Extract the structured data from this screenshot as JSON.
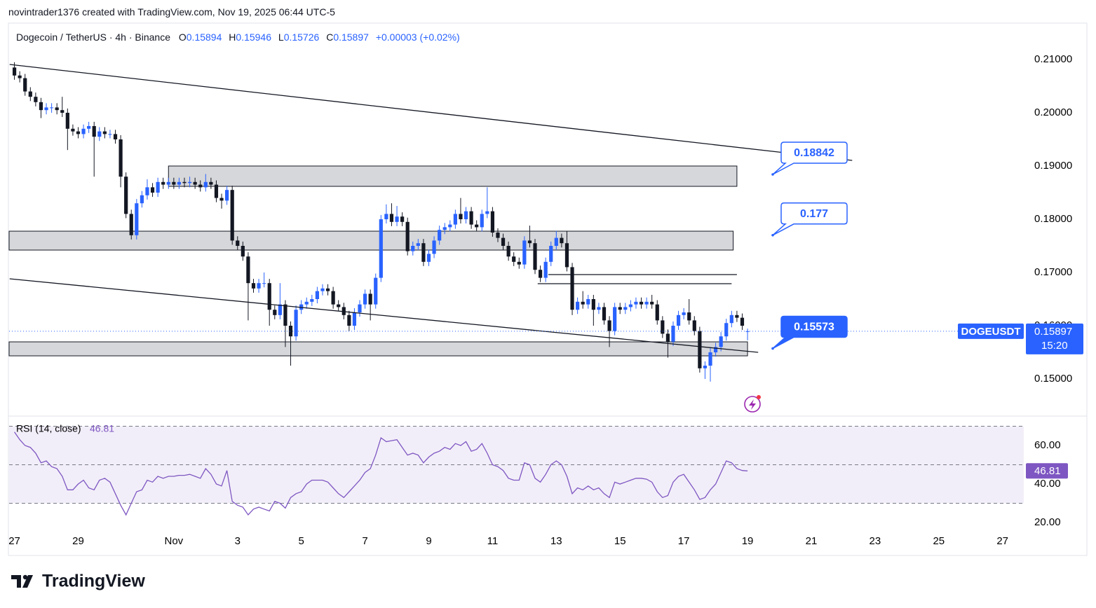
{
  "credit": "novintrader1376 created with TradingView.com, Nov 19, 2025 06:44 UTC-5",
  "brand": "TradingView",
  "chart_data": [
    {
      "type": "candlestick",
      "symbol": "Dogecoin / TetherUS · 4h · Binance",
      "ohlc_labels": [
        "O",
        "H",
        "L",
        "C"
      ],
      "change": "+0.00003 (+0.02%)",
      "ticker": "DOGEUSDT",
      "timer": "15:20",
      "up_color": "#2962ff",
      "down_color": "#131722",
      "grid": false,
      "xlim": [
        -1,
        190
      ],
      "ylim": [
        0.14316,
        0.21684
      ],
      "yticks": [
        {
          "value": 0.21,
          "label": "0.21000"
        },
        {
          "value": 0.2,
          "label": "0.20000"
        },
        {
          "value": 0.19,
          "label": "0.19000"
        },
        {
          "value": 0.18,
          "label": "0.18000"
        },
        {
          "value": 0.17,
          "label": "0.17000"
        },
        {
          "value": 0.16,
          "label": "0.16000"
        },
        {
          "value": 0.15,
          "label": "0.15000"
        }
      ],
      "xticks": [
        {
          "value": 0,
          "label": "27"
        },
        {
          "value": 12,
          "label": "29"
        },
        {
          "value": 30,
          "label": "Nov"
        },
        {
          "value": 42,
          "label": "3"
        },
        {
          "value": 54,
          "label": "5"
        },
        {
          "value": 66,
          "label": "7"
        },
        {
          "value": 78,
          "label": "9"
        },
        {
          "value": 90,
          "label": "11"
        },
        {
          "value": 102,
          "label": "13"
        },
        {
          "value": 114,
          "label": "15"
        },
        {
          "value": 126,
          "label": "17"
        },
        {
          "value": 138,
          "label": "19"
        },
        {
          "value": 150,
          "label": "21"
        },
        {
          "value": 162,
          "label": "23"
        },
        {
          "value": 174,
          "label": "25"
        },
        {
          "value": 186,
          "label": "27"
        }
      ],
      "ohlc": [
        [
          0.2085,
          0.2095,
          0.2062,
          0.207
        ],
        [
          0.207,
          0.2078,
          0.2057,
          0.2065
        ],
        [
          0.2065,
          0.2073,
          0.2032,
          0.204
        ],
        [
          0.204,
          0.2048,
          0.2022,
          0.203
        ],
        [
          0.203,
          0.2038,
          0.2012,
          0.202
        ],
        [
          0.202,
          0.2028,
          0.199,
          0.2005
        ],
        [
          0.2005,
          0.2018,
          0.1997,
          0.201
        ],
        [
          0.201,
          0.2018,
          0.2,
          0.201
        ],
        [
          0.201,
          0.2018,
          0.1997,
          0.2005
        ],
        [
          0.2005,
          0.203,
          0.1992,
          0.2
        ],
        [
          0.2,
          0.2008,
          0.193,
          0.197
        ],
        [
          0.197,
          0.1978,
          0.1957,
          0.1965
        ],
        [
          0.1965,
          0.1973,
          0.1952,
          0.196
        ],
        [
          0.196,
          0.1978,
          0.1952,
          0.197
        ],
        [
          0.197,
          0.1983,
          0.1962,
          0.1975
        ],
        [
          0.1975,
          0.1983,
          0.188,
          0.1955
        ],
        [
          0.1955,
          0.1973,
          0.1947,
          0.1965
        ],
        [
          0.1965,
          0.1973,
          0.1952,
          0.196
        ],
        [
          0.196,
          0.1968,
          0.1952,
          0.196
        ],
        [
          0.196,
          0.1968,
          0.1942,
          0.195
        ],
        [
          0.195,
          0.1958,
          0.186,
          0.188
        ],
        [
          0.188,
          0.1888,
          0.1802,
          0.181
        ],
        [
          0.181,
          0.1818,
          0.1762,
          0.177
        ],
        [
          0.177,
          0.1838,
          0.1762,
          0.183
        ],
        [
          0.183,
          0.1853,
          0.1822,
          0.1845
        ],
        [
          0.1845,
          0.1875,
          0.1837,
          0.186
        ],
        [
          0.186,
          0.1868,
          0.1842,
          0.185
        ],
        [
          0.185,
          0.1878,
          0.1842,
          0.187
        ],
        [
          0.187,
          0.1878,
          0.1857,
          0.1865
        ],
        [
          0.1865,
          0.1878,
          0.1857,
          0.187
        ],
        [
          0.187,
          0.1878,
          0.1857,
          0.1865
        ],
        [
          0.1865,
          0.1878,
          0.1857,
          0.187
        ],
        [
          0.187,
          0.1878,
          0.186,
          0.1868
        ],
        [
          0.1868,
          0.188,
          0.186,
          0.187
        ],
        [
          0.187,
          0.1878,
          0.1857,
          0.1865
        ],
        [
          0.1865,
          0.1873,
          0.1852,
          0.186
        ],
        [
          0.186,
          0.1885,
          0.1852,
          0.187
        ],
        [
          0.187,
          0.1878,
          0.1857,
          0.1865
        ],
        [
          0.1865,
          0.1873,
          0.1832,
          0.184
        ],
        [
          0.184,
          0.1848,
          0.182,
          0.1835
        ],
        [
          0.1835,
          0.1863,
          0.1827,
          0.1855
        ],
        [
          0.1855,
          0.1863,
          0.1752,
          0.176
        ],
        [
          0.176,
          0.1768,
          0.1742,
          0.175
        ],
        [
          0.175,
          0.1758,
          0.1722,
          0.173
        ],
        [
          0.173,
          0.1738,
          0.161,
          0.168
        ],
        [
          0.168,
          0.1688,
          0.1662,
          0.167
        ],
        [
          0.167,
          0.1688,
          0.1662,
          0.168
        ],
        [
          0.168,
          0.17,
          0.1672,
          0.168
        ],
        [
          0.168,
          0.1688,
          0.16,
          0.163
        ],
        [
          0.163,
          0.1638,
          0.1612,
          0.162
        ],
        [
          0.162,
          0.168,
          0.1612,
          0.164
        ],
        [
          0.164,
          0.1648,
          0.156,
          0.16
        ],
        [
          0.16,
          0.1608,
          0.1525,
          0.158
        ],
        [
          0.158,
          0.1638,
          0.1572,
          0.163
        ],
        [
          0.163,
          0.1648,
          0.1622,
          0.164
        ],
        [
          0.164,
          0.1653,
          0.1632,
          0.1645
        ],
        [
          0.1645,
          0.1658,
          0.1637,
          0.165
        ],
        [
          0.165,
          0.1673,
          0.1642,
          0.1665
        ],
        [
          0.1665,
          0.1678,
          0.1657,
          0.167
        ],
        [
          0.167,
          0.1678,
          0.1657,
          0.1665
        ],
        [
          0.1665,
          0.1673,
          0.1632,
          0.164
        ],
        [
          0.164,
          0.1648,
          0.1627,
          0.1635
        ],
        [
          0.1635,
          0.1643,
          0.1612,
          0.162
        ],
        [
          0.162,
          0.1628,
          0.159,
          0.16
        ],
        [
          0.16,
          0.1633,
          0.1592,
          0.1625
        ],
        [
          0.1625,
          0.1648,
          0.1617,
          0.164
        ],
        [
          0.164,
          0.1668,
          0.1632,
          0.166
        ],
        [
          0.166,
          0.1668,
          0.161,
          0.164
        ],
        [
          0.164,
          0.1698,
          0.1632,
          0.169
        ],
        [
          0.169,
          0.1808,
          0.1682,
          0.18
        ],
        [
          0.18,
          0.1828,
          0.1792,
          0.181
        ],
        [
          0.181,
          0.183,
          0.1787,
          0.1795
        ],
        [
          0.1795,
          0.1825,
          0.1787,
          0.1805
        ],
        [
          0.1805,
          0.1813,
          0.1787,
          0.1795
        ],
        [
          0.1795,
          0.1803,
          0.1732,
          0.174
        ],
        [
          0.174,
          0.1758,
          0.1732,
          0.175
        ],
        [
          0.175,
          0.1763,
          0.1742,
          0.1755
        ],
        [
          0.1755,
          0.1763,
          0.1712,
          0.172
        ],
        [
          0.172,
          0.1743,
          0.1712,
          0.1735
        ],
        [
          0.1735,
          0.1768,
          0.1727,
          0.176
        ],
        [
          0.176,
          0.1788,
          0.1752,
          0.178
        ],
        [
          0.178,
          0.1793,
          0.1772,
          0.1785
        ],
        [
          0.1785,
          0.1798,
          0.1777,
          0.179
        ],
        [
          0.179,
          0.1818,
          0.1782,
          0.181
        ],
        [
          0.181,
          0.184,
          0.1792,
          0.18
        ],
        [
          0.18,
          0.1823,
          0.1792,
          0.1815
        ],
        [
          0.1815,
          0.1823,
          0.1782,
          0.179
        ],
        [
          0.179,
          0.1798,
          0.1777,
          0.1785
        ],
        [
          0.1785,
          0.1818,
          0.1777,
          0.181
        ],
        [
          0.181,
          0.186,
          0.1802,
          0.1815
        ],
        [
          0.1815,
          0.1823,
          0.1767,
          0.1775
        ],
        [
          0.1775,
          0.1783,
          0.1757,
          0.1765
        ],
        [
          0.1765,
          0.1773,
          0.1742,
          0.175
        ],
        [
          0.175,
          0.1758,
          0.1722,
          0.173
        ],
        [
          0.173,
          0.1738,
          0.1712,
          0.172
        ],
        [
          0.172,
          0.1728,
          0.1707,
          0.1715
        ],
        [
          0.1715,
          0.1768,
          0.1707,
          0.176
        ],
        [
          0.176,
          0.1788,
          0.1747,
          0.1755
        ],
        [
          0.1755,
          0.1763,
          0.1697,
          0.1705
        ],
        [
          0.1705,
          0.1713,
          0.1682,
          0.169
        ],
        [
          0.169,
          0.1728,
          0.1682,
          0.172
        ],
        [
          0.172,
          0.1758,
          0.1712,
          0.175
        ],
        [
          0.175,
          0.1778,
          0.1742,
          0.1765
        ],
        [
          0.1765,
          0.1773,
          0.1747,
          0.1755
        ],
        [
          0.1755,
          0.1778,
          0.1702,
          0.171
        ],
        [
          0.171,
          0.1718,
          0.162,
          0.163
        ],
        [
          0.163,
          0.1653,
          0.1622,
          0.1645
        ],
        [
          0.1645,
          0.1665,
          0.1632,
          0.164
        ],
        [
          0.164,
          0.1658,
          0.1632,
          0.165
        ],
        [
          0.165,
          0.1658,
          0.16,
          0.163
        ],
        [
          0.163,
          0.1643,
          0.1622,
          0.1635
        ],
        [
          0.1635,
          0.1643,
          0.1602,
          0.161
        ],
        [
          0.161,
          0.1618,
          0.156,
          0.159
        ],
        [
          0.159,
          0.1643,
          0.1582,
          0.1635
        ],
        [
          0.1635,
          0.1643,
          0.1622,
          0.163
        ],
        [
          0.163,
          0.1643,
          0.1622,
          0.1635
        ],
        [
          0.1635,
          0.1648,
          0.1627,
          0.164
        ],
        [
          0.164,
          0.1653,
          0.1632,
          0.1645
        ],
        [
          0.1645,
          0.1653,
          0.1632,
          0.164
        ],
        [
          0.164,
          0.1653,
          0.1632,
          0.1645
        ],
        [
          0.1645,
          0.1658,
          0.1632,
          0.164
        ],
        [
          0.164,
          0.1648,
          0.1602,
          0.161
        ],
        [
          0.161,
          0.1618,
          0.1577,
          0.1585
        ],
        [
          0.1585,
          0.1593,
          0.154,
          0.157
        ],
        [
          0.157,
          0.1608,
          0.1562,
          0.16
        ],
        [
          0.16,
          0.1628,
          0.1592,
          0.162
        ],
        [
          0.162,
          0.1633,
          0.1612,
          0.1625
        ],
        [
          0.1625,
          0.165,
          0.1602,
          0.161
        ],
        [
          0.161,
          0.1618,
          0.1582,
          0.159
        ],
        [
          0.159,
          0.1598,
          0.1512,
          0.152
        ],
        [
          0.152,
          0.1533,
          0.15,
          0.1525
        ],
        [
          0.1525,
          0.1558,
          0.1495,
          0.155
        ],
        [
          0.155,
          0.1568,
          0.1542,
          0.156
        ],
        [
          0.156,
          0.1588,
          0.1552,
          0.158
        ],
        [
          0.158,
          0.1613,
          0.1572,
          0.1605
        ],
        [
          0.1605,
          0.1628,
          0.1597,
          0.162
        ],
        [
          0.162,
          0.1628,
          0.1607,
          0.1615
        ],
        [
          0.1615,
          0.1623,
          0.1592,
          0.16
        ],
        [
          0.15894,
          0.15946,
          0.15726,
          0.15897
        ]
      ],
      "zones": [
        [
          29,
          136,
          0.19,
          0.18618
        ],
        [
          -1,
          135.3,
          0.17776,
          0.17421
        ],
        [
          -1,
          138,
          0.15697,
          0.15434
        ]
      ],
      "trendlines": [
        [
          -0.9,
          0.20908,
          157.7,
          0.19105
        ],
        [
          -0.9,
          0.16882,
          140,
          0.155
        ]
      ],
      "hlines": [
        [
          100.5,
          136,
          0.16961
        ],
        [
          98.5,
          135,
          0.1679
        ]
      ],
      "callouts": [
        {
          "value": 0.18842,
          "filled": false
        },
        {
          "value": 0.177,
          "filled": false
        },
        {
          "value": 0.15573,
          "filled": true
        }
      ]
    },
    {
      "type": "line",
      "title": "RSI (14, close)",
      "color": "#7e57c2",
      "xlim": [
        -1,
        190
      ],
      "ylim": [
        14.2,
        73.8
      ],
      "levels": [
        70,
        50,
        30
      ],
      "yticks": [
        {
          "value": 60,
          "label": "60.00"
        },
        {
          "value": 40,
          "label": "40.00"
        },
        {
          "value": 20,
          "label": "20.00"
        }
      ],
      "values": [
        67,
        63,
        60,
        59,
        56,
        51,
        52,
        49,
        48,
        44,
        37,
        37,
        40,
        42,
        38,
        37,
        42,
        43,
        41,
        35,
        29,
        24,
        30,
        36,
        37,
        42,
        41,
        44,
        43,
        44,
        44,
        44.5,
        44.5,
        45,
        44,
        43,
        48,
        45,
        40,
        39,
        47,
        31,
        29,
        28,
        24,
        27,
        28,
        27,
        26,
        31,
        30,
        27.5,
        33,
        35,
        36,
        40,
        42,
        42,
        42,
        41,
        38,
        35,
        33,
        36,
        39,
        42,
        46,
        48,
        55,
        64,
        62,
        62.5,
        63,
        59,
        55,
        56,
        55,
        51,
        54,
        56,
        57,
        59,
        58,
        61,
        60,
        62,
        57,
        58,
        61,
        56,
        50,
        49,
        47,
        43,
        42,
        42,
        51,
        50,
        43,
        41,
        45,
        50,
        52,
        50,
        44,
        35,
        38,
        37,
        39,
        37,
        38,
        35,
        33,
        41,
        40,
        41,
        42,
        43,
        43,
        42.5,
        41,
        36,
        33,
        34,
        41,
        44,
        45,
        41,
        37,
        32,
        33,
        37,
        40,
        46,
        52,
        51,
        48,
        47,
        46.81
      ]
    }
  ]
}
